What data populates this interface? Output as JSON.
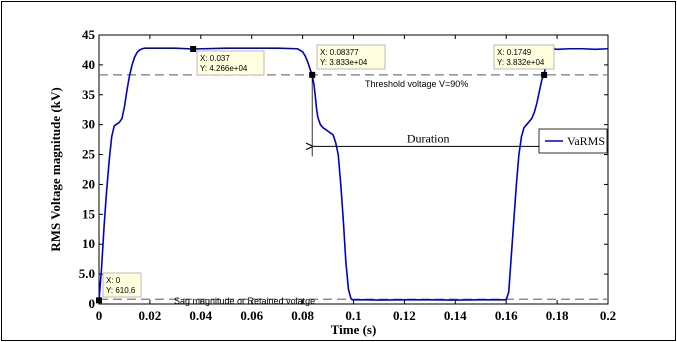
{
  "chart_data": {
    "type": "line",
    "xlabel": "Time (s)",
    "ylabel": "RMS Voltage magnitude (kV)",
    "xlim": [
      0,
      0.2
    ],
    "ylim": [
      0,
      45
    ],
    "xticks": [
      {
        "value": 0,
        "label": "0"
      },
      {
        "value": 0.02,
        "label": "0.02"
      },
      {
        "value": 0.04,
        "label": "0.04"
      },
      {
        "value": 0.06,
        "label": "0.06"
      },
      {
        "value": 0.08,
        "label": "0.08"
      },
      {
        "value": 0.1,
        "label": "0.1"
      },
      {
        "value": 0.12,
        "label": "0.12"
      },
      {
        "value": 0.14,
        "label": "0.14"
      },
      {
        "value": 0.16,
        "label": "0.16"
      },
      {
        "value": 0.18,
        "label": "0.18"
      },
      {
        "value": 0.2,
        "label": "0.2"
      }
    ],
    "yticks": [
      {
        "value": 0,
        "label": "0"
      },
      {
        "value": 5,
        "label": "5.0"
      },
      {
        "value": 10,
        "label": "10"
      },
      {
        "value": 15,
        "label": "15"
      },
      {
        "value": 20,
        "label": "20"
      },
      {
        "value": 25,
        "label": "25"
      },
      {
        "value": 30,
        "label": "30"
      },
      {
        "value": 35,
        "label": "35"
      },
      {
        "value": 40,
        "label": "40"
      },
      {
        "value": 45,
        "label": "45"
      }
    ],
    "grid": false,
    "legend": {
      "position": "right",
      "entries": [
        "VaRMS"
      ]
    },
    "series": [
      {
        "name": "VaRMS",
        "color": "#0000cc",
        "x": [
          0,
          0.001,
          0.002,
          0.003,
          0.004,
          0.005,
          0.006,
          0.007,
          0.008,
          0.009,
          0.01,
          0.011,
          0.012,
          0.013,
          0.014,
          0.015,
          0.016,
          0.017,
          0.018,
          0.019,
          0.02,
          0.022,
          0.025,
          0.03,
          0.037,
          0.05,
          0.06,
          0.07,
          0.078,
          0.08,
          0.081,
          0.082,
          0.083,
          0.08377,
          0.0845,
          0.085,
          0.0855,
          0.086,
          0.087,
          0.088,
          0.089,
          0.09,
          0.091,
          0.092,
          0.093,
          0.094,
          0.095,
          0.096,
          0.097,
          0.098,
          0.099,
          0.0995,
          0.1,
          0.101,
          0.105,
          0.11,
          0.12,
          0.13,
          0.14,
          0.15,
          0.155,
          0.16,
          0.161,
          0.162,
          0.163,
          0.164,
          0.165,
          0.166,
          0.167,
          0.168,
          0.169,
          0.17,
          0.171,
          0.172,
          0.173,
          0.174,
          0.1749,
          0.1755,
          0.176,
          0.177,
          0.178,
          0.18,
          0.185,
          0.19,
          0.195,
          0.2
        ],
        "y": [
          0.61,
          6,
          13,
          19,
          24,
          28,
          29.8,
          30.1,
          30.4,
          31,
          33,
          35.8,
          38.2,
          40,
          41.3,
          42.1,
          42.5,
          42.7,
          42.8,
          42.8,
          42.8,
          42.8,
          42.8,
          42.8,
          42.66,
          42.8,
          42.8,
          42.8,
          42.7,
          42.2,
          41.5,
          40.5,
          39.2,
          38.33,
          36.6,
          34.7,
          32.6,
          31.2,
          30,
          29.5,
          29.2,
          28.9,
          28.6,
          28.3,
          27,
          25,
          20,
          14,
          7,
          2.5,
          0.9,
          0.7,
          0.7,
          0.7,
          0.7,
          0.65,
          0.7,
          0.7,
          0.65,
          0.7,
          0.7,
          0.7,
          2,
          8,
          14,
          20,
          25,
          28,
          29.5,
          30,
          30.5,
          31,
          32,
          33.5,
          35.5,
          37.5,
          38.32,
          40,
          41.5,
          42.3,
          42.7,
          42.6,
          42.7,
          42.7,
          42.6,
          42.7
        ]
      }
    ],
    "datatips": [
      {
        "x": 0,
        "y": 0.6106,
        "x_text": "X: 0",
        "y_text": "Y: 610.6"
      },
      {
        "x": 0.037,
        "y": 42.66,
        "x_text": "X: 0.037",
        "y_text": "Y: 4.266e+04"
      },
      {
        "x": 0.08377,
        "y": 38.33,
        "x_text": "X: 0.08377",
        "y_text": "Y: 3.833e+04"
      },
      {
        "x": 0.1749,
        "y": 38.32,
        "x_text": "X: 0.1749",
        "y_text": "Y: 3.832e+04"
      }
    ],
    "reference_lines": [
      {
        "y": 38.33,
        "label": "Threshold voltage V=90%"
      },
      {
        "y": 0.8,
        "label": "Sag magnitude or Retained volatge"
      }
    ],
    "duration": {
      "x_start": 0.08377,
      "x_end": 0.1749,
      "y": 25.7,
      "label": "Duration"
    }
  }
}
